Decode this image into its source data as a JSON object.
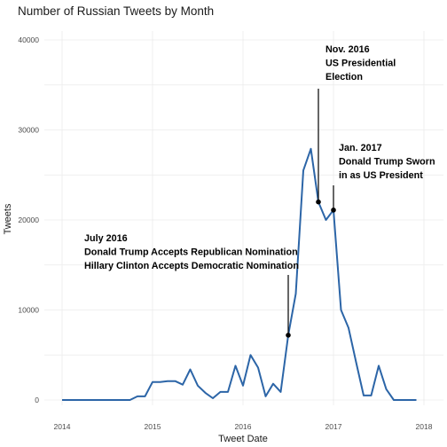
{
  "chart_data": {
    "type": "line",
    "title": "Number of Russian Tweets by Month",
    "xlabel": "Tweet Date",
    "ylabel": "Tweets",
    "xlim": [
      "2014-01-01",
      "2018-01-01"
    ],
    "ylim": [
      0,
      40000
    ],
    "xticks": [
      "2014",
      "2015",
      "2016",
      "2017",
      "2018"
    ],
    "yticks": [
      "0",
      "10000",
      "20000",
      "30000",
      "40000"
    ],
    "line_color": "#2c65a7",
    "grid": true,
    "x": [
      "2014-01",
      "2014-02",
      "2014-03",
      "2014-04",
      "2014-05",
      "2014-06",
      "2014-07",
      "2014-08",
      "2014-09",
      "2014-10",
      "2014-11",
      "2014-12",
      "2015-01",
      "2015-02",
      "2015-03",
      "2015-04",
      "2015-05",
      "2015-06",
      "2015-07",
      "2015-08",
      "2015-09",
      "2015-10",
      "2015-11",
      "2015-12",
      "2016-01",
      "2016-02",
      "2016-03",
      "2016-04",
      "2016-05",
      "2016-06",
      "2016-07",
      "2016-08",
      "2016-09",
      "2016-10",
      "2016-11",
      "2016-12",
      "2017-01",
      "2017-02",
      "2017-03",
      "2017-04",
      "2017-05",
      "2017-06",
      "2017-07",
      "2017-08",
      "2017-09",
      "2017-10",
      "2017-11",
      "2017-12"
    ],
    "values": [
      0,
      0,
      0,
      0,
      0,
      0,
      0,
      0,
      0,
      0,
      400,
      400,
      2000,
      2000,
      2100,
      2100,
      1700,
      3400,
      1600,
      800,
      200,
      900,
      900,
      3800,
      1600,
      5000,
      3600,
      400,
      1800,
      900,
      7200,
      11800,
      25500,
      27900,
      22000,
      20000,
      21100,
      10000,
      8000,
      4200,
      500,
      500,
      3800,
      1200,
      0,
      0,
      0,
      0
    ],
    "annotations": [
      {
        "lines": [
          "July 2016",
          "Donald Trump Accepts Republican Nomination",
          "Hillary Clinton Accepts Democratic Nomination"
        ],
        "x": "2016-07",
        "y": 7200
      },
      {
        "lines": [
          "Nov. 2016",
          "US Presidential",
          "Election"
        ],
        "x": "2016-11",
        "y": 22000
      },
      {
        "lines": [
          "Jan. 2017",
          "Donald Trump Sworn",
          "in as US President"
        ],
        "x": "2017-01",
        "y": 21100
      }
    ]
  }
}
